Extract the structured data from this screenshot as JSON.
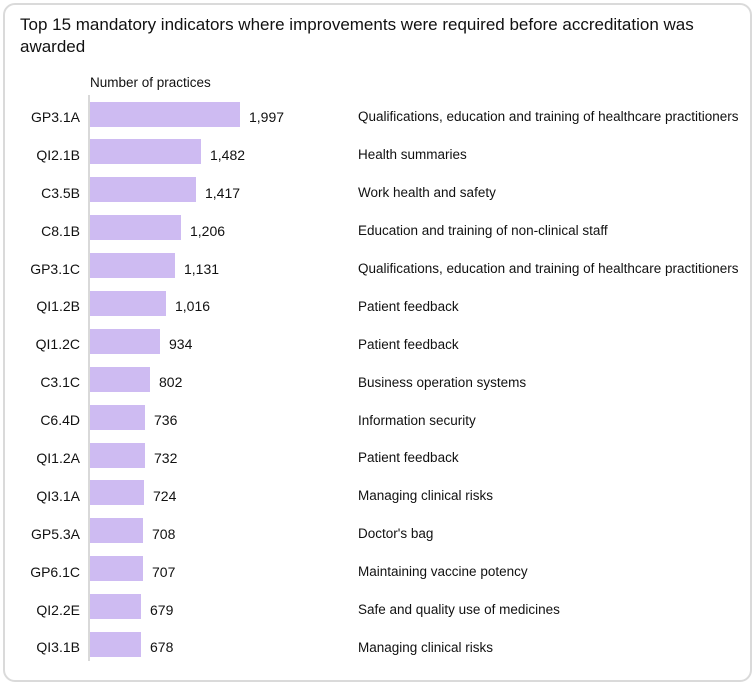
{
  "title": "Top 15 mandatory indicators where improvements were required before accreditation was awarded",
  "axis_label": "Number of practices",
  "colors": {
    "bar_fill": "#cebbf2",
    "axis_line": "#d9d9d9",
    "card_border": "#dadada",
    "text": "#111111"
  },
  "chart_data": {
    "type": "bar",
    "orientation": "horizontal",
    "title": "Top 15 mandatory indicators where improvements were required before accreditation was awarded",
    "xlabel": "Number of practices",
    "xlim": [
      0,
      2000
    ],
    "grid": false,
    "legend_position": "none",
    "categories": [
      "GP3.1A",
      "QI2.1B",
      "C3.5B",
      "C8.1B",
      "GP3.1C",
      "QI1.2B",
      "QI1.2C",
      "C3.1C",
      "C6.4D",
      "QI1.2A",
      "QI3.1A",
      "GP5.3A",
      "GP6.1C",
      "QI2.2E",
      "QI3.1B"
    ],
    "values": [
      1997,
      1482,
      1417,
      1206,
      1131,
      1016,
      934,
      802,
      736,
      732,
      724,
      708,
      707,
      679,
      678
    ],
    "value_labels": [
      "1,997",
      "1,482",
      "1,417",
      "1,206",
      "1,131",
      "1,016",
      "934",
      "802",
      "736",
      "732",
      "724",
      "708",
      "707",
      "679",
      "678"
    ],
    "descriptions": [
      "Qualifications, education and training of healthcare practitioners",
      "Health summaries",
      "Work health and safety",
      "Education and training of non-clinical staff",
      "Qualifications, education and training of healthcare practitioners",
      "Patient feedback",
      "Patient feedback",
      "Business operation systems",
      "Information security",
      "Patient feedback",
      "Managing clinical risks",
      "Doctor's bag",
      "Maintaining vaccine potency",
      "Safe and quality use of medicines",
      "Managing clinical risks"
    ]
  }
}
